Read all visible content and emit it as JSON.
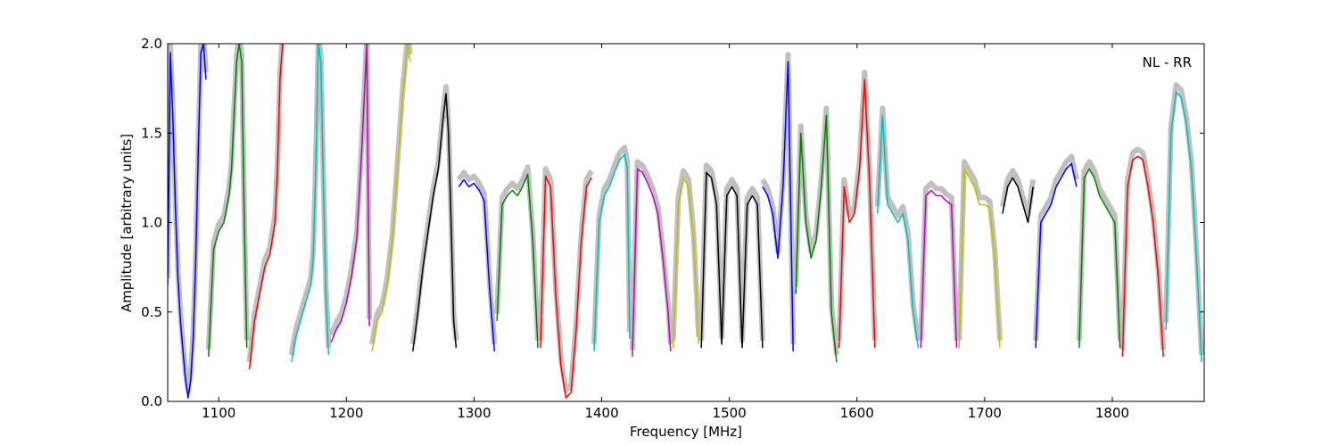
{
  "chart_data": {
    "type": "line",
    "title": "",
    "xlabel": "Frequency [MHz]",
    "ylabel": "Amplitude [arbitrary units]",
    "annotation": "NL - RR",
    "xlim": [
      1060,
      1872
    ],
    "ylim": [
      0.0,
      2.0
    ],
    "xticks": [
      "1100",
      "1200",
      "1300",
      "1400",
      "1500",
      "1600",
      "1700",
      "1800"
    ],
    "yticks": [
      "0.0",
      "0.5",
      "1.0",
      "1.5",
      "2.0"
    ],
    "background_color": "#c0c0c0",
    "series_colors": [
      "#0000ff",
      "#008000",
      "#ff0000",
      "#00bfbf",
      "#bf00bf",
      "#bfbf00",
      "#000000"
    ],
    "series": [
      {
        "color": "#0000ff",
        "x": [
          1060,
          1062,
          1064,
          1066,
          1068,
          1070,
          1072,
          1074,
          1076,
          1078,
          1080,
          1082,
          1084,
          1086,
          1088,
          1090
        ],
        "y": [
          0.65,
          1.95,
          1.6,
          1.1,
          0.7,
          0.45,
          0.28,
          0.12,
          0.02,
          0.12,
          0.35,
          0.8,
          1.4,
          1.95,
          2.0,
          1.8
        ]
      },
      {
        "color": "#008000",
        "x": [
          1092,
          1096,
          1100,
          1104,
          1108,
          1110,
          1112,
          1114,
          1116,
          1118,
          1120,
          1122
        ],
        "y": [
          0.25,
          0.85,
          0.95,
          1.0,
          1.15,
          1.3,
          1.6,
          1.9,
          2.0,
          1.9,
          1.0,
          0.3
        ]
      },
      {
        "color": "#ff0000",
        "x": [
          1124,
          1128,
          1132,
          1136,
          1140,
          1144,
          1146,
          1148,
          1150
        ],
        "y": [
          0.18,
          0.45,
          0.6,
          0.75,
          0.82,
          1.0,
          1.3,
          1.8,
          2.0
        ]
      },
      {
        "color": "#00bfbf",
        "x": [
          1157,
          1160,
          1164,
          1168,
          1172,
          1174,
          1176,
          1178,
          1180,
          1182,
          1184,
          1186
        ],
        "y": [
          0.22,
          0.35,
          0.45,
          0.55,
          0.65,
          0.8,
          1.3,
          2.0,
          1.9,
          1.2,
          0.6,
          0.26
        ]
      },
      {
        "color": "#bf00bf",
        "x": [
          1188,
          1192,
          1196,
          1200,
          1204,
          1208,
          1212,
          1216,
          1218
        ],
        "y": [
          0.33,
          0.4,
          0.45,
          0.55,
          0.7,
          0.9,
          1.4,
          2.0,
          0.42
        ]
      },
      {
        "color": "#bfbf00",
        "x": [
          1220,
          1224,
          1228,
          1232,
          1236,
          1240,
          1244,
          1248,
          1250
        ],
        "y": [
          0.28,
          0.45,
          0.5,
          0.65,
          0.9,
          1.3,
          1.7,
          2.0,
          1.9
        ]
      },
      {
        "color": "#000000",
        "x": [
          1252,
          1256,
          1260,
          1264,
          1268,
          1272,
          1276,
          1278,
          1280,
          1282,
          1284,
          1286
        ],
        "y": [
          0.28,
          0.5,
          0.75,
          0.95,
          1.15,
          1.3,
          1.6,
          1.72,
          1.5,
          1.0,
          0.45,
          0.3
        ]
      },
      {
        "color": "#0000ff",
        "x": [
          1288,
          1292,
          1296,
          1300,
          1304,
          1308,
          1312,
          1316
        ],
        "y": [
          1.2,
          1.24,
          1.2,
          1.22,
          1.18,
          1.12,
          0.65,
          0.28
        ]
      },
      {
        "color": "#008000",
        "x": [
          1318,
          1322,
          1326,
          1330,
          1334,
          1338,
          1342,
          1346,
          1350
        ],
        "y": [
          0.45,
          1.1,
          1.15,
          1.18,
          1.15,
          1.2,
          1.27,
          0.9,
          0.3
        ]
      },
      {
        "color": "#ff0000",
        "x": [
          1352,
          1356,
          1360,
          1364,
          1368,
          1372,
          1376,
          1380,
          1384,
          1388,
          1392
        ],
        "y": [
          0.3,
          1.26,
          1.2,
          0.6,
          0.2,
          0.02,
          0.05,
          0.4,
          0.9,
          1.2,
          1.25
        ]
      },
      {
        "color": "#00bfbf",
        "x": [
          1394,
          1398,
          1402,
          1406,
          1410,
          1414,
          1418,
          1420,
          1422
        ],
        "y": [
          0.28,
          1.0,
          1.15,
          1.2,
          1.28,
          1.35,
          1.38,
          1.3,
          0.35
        ]
      },
      {
        "color": "#bf00bf",
        "x": [
          1424,
          1428,
          1432,
          1436,
          1440,
          1444,
          1448,
          1452,
          1454
        ],
        "y": [
          0.25,
          1.3,
          1.28,
          1.22,
          1.15,
          1.05,
          0.8,
          0.5,
          0.28
        ]
      },
      {
        "color": "#bfbf00",
        "x": [
          1456,
          1460,
          1464,
          1468,
          1472,
          1476
        ],
        "y": [
          0.3,
          1.1,
          1.25,
          1.2,
          0.9,
          0.32
        ]
      },
      {
        "color": "#000000",
        "x": [
          1478,
          1482,
          1486,
          1490,
          1494,
          1498,
          1502,
          1506,
          1510,
          1514,
          1518,
          1522,
          1526
        ],
        "y": [
          0.3,
          1.28,
          1.25,
          1.1,
          0.32,
          1.15,
          1.2,
          1.15,
          0.3,
          1.1,
          1.15,
          1.1,
          0.3
        ]
      },
      {
        "color": "#0000ff",
        "x": [
          1526,
          1530,
          1534,
          1538,
          1542,
          1546,
          1550
        ],
        "y": [
          1.2,
          1.15,
          1.05,
          0.8,
          1.2,
          1.9,
          0.28
        ]
      },
      {
        "color": "#008000",
        "x": [
          1552,
          1556,
          1560,
          1564,
          1568,
          1572,
          1576,
          1580,
          1584
        ],
        "y": [
          0.6,
          1.5,
          1.0,
          0.8,
          0.9,
          1.2,
          1.6,
          0.5,
          0.22
        ]
      },
      {
        "color": "#ff0000",
        "x": [
          1586,
          1590,
          1594,
          1598,
          1602,
          1606,
          1610,
          1614
        ],
        "y": [
          0.3,
          1.2,
          1.0,
          1.05,
          1.3,
          1.8,
          1.2,
          0.3
        ]
      },
      {
        "color": "#00bfbf",
        "x": [
          1616,
          1620,
          1624,
          1628,
          1632,
          1636,
          1640,
          1644,
          1648
        ],
        "y": [
          1.05,
          1.6,
          1.1,
          1.05,
          1.0,
          1.05,
          0.9,
          0.5,
          0.3
        ]
      },
      {
        "color": "#bf00bf",
        "x": [
          1650,
          1654,
          1658,
          1662,
          1666,
          1670,
          1674,
          1678
        ],
        "y": [
          0.3,
          1.15,
          1.18,
          1.15,
          1.15,
          1.12,
          1.1,
          0.3
        ]
      },
      {
        "color": "#bfbf00",
        "x": [
          1680,
          1684,
          1688,
          1692,
          1696,
          1700,
          1704,
          1708,
          1712
        ],
        "y": [
          0.3,
          1.3,
          1.25,
          1.2,
          1.1,
          1.1,
          1.08,
          0.8,
          0.3
        ]
      },
      {
        "color": "#000000",
        "x": [
          1714,
          1718,
          1722,
          1726,
          1730,
          1734,
          1738
        ],
        "y": [
          1.05,
          1.2,
          1.25,
          1.2,
          1.1,
          1.0,
          1.2
        ]
      },
      {
        "color": "#0000ff",
        "x": [
          1740,
          1744,
          1748,
          1752,
          1756,
          1760,
          1764,
          1768,
          1772
        ],
        "y": [
          0.3,
          1.0,
          1.05,
          1.1,
          1.2,
          1.25,
          1.3,
          1.33,
          1.2
        ]
      },
      {
        "color": "#008000",
        "x": [
          1774,
          1778,
          1782,
          1786,
          1790,
          1794,
          1798,
          1802,
          1806
        ],
        "y": [
          0.3,
          1.25,
          1.3,
          1.25,
          1.15,
          1.1,
          1.05,
          1.0,
          0.3
        ]
      },
      {
        "color": "#ff0000",
        "x": [
          1808,
          1812,
          1816,
          1820,
          1824,
          1828,
          1832,
          1836,
          1840
        ],
        "y": [
          0.25,
          1.2,
          1.35,
          1.37,
          1.35,
          1.2,
          1.0,
          0.7,
          0.25
        ]
      },
      {
        "color": "#00bfbf",
        "x": [
          1842,
          1846,
          1850,
          1854,
          1858,
          1862,
          1866,
          1870
        ],
        "y": [
          0.4,
          1.5,
          1.73,
          1.7,
          1.55,
          1.3,
          0.8,
          0.22
        ]
      }
    ]
  }
}
